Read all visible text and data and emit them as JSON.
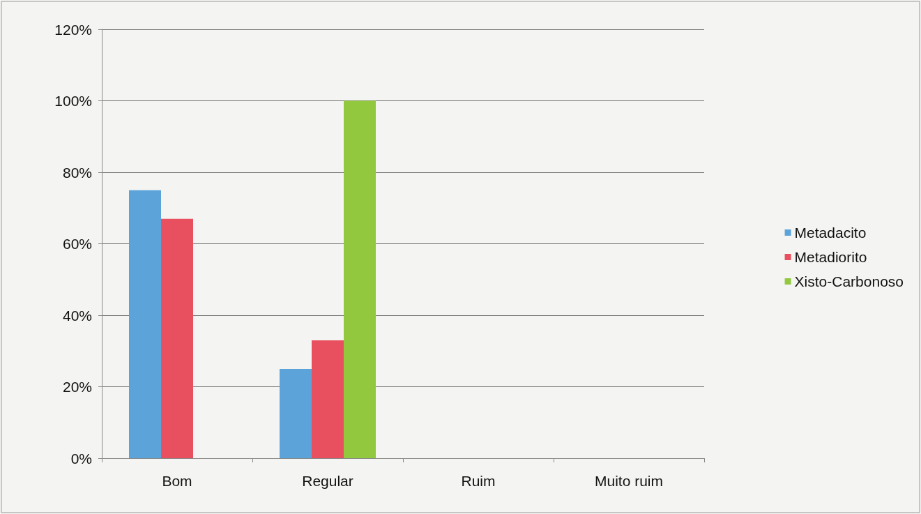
{
  "chart_data": {
    "type": "bar",
    "categories": [
      "Bom",
      "Regular",
      "Ruim",
      "Muito ruim"
    ],
    "series": [
      {
        "name": "Metadacito",
        "color": "#5ba3d9",
        "values": [
          75,
          25,
          0,
          0
        ]
      },
      {
        "name": "Metadiorito",
        "color": "#e8505f",
        "values": [
          67,
          33,
          0,
          0
        ]
      },
      {
        "name": "Xisto-Carbonoso",
        "color": "#92c83e",
        "values": [
          0,
          100,
          0,
          0
        ]
      }
    ],
    "ylim": [
      0,
      120
    ],
    "yticks": [
      {
        "value": 0,
        "label": "0%"
      },
      {
        "value": 20,
        "label": "20%"
      },
      {
        "value": 40,
        "label": "40%"
      },
      {
        "value": 60,
        "label": "60%"
      },
      {
        "value": 80,
        "label": "80%"
      },
      {
        "value": 100,
        "label": "100%"
      },
      {
        "value": 120,
        "label": "120%"
      }
    ],
    "grid": "y",
    "legend": "right"
  }
}
